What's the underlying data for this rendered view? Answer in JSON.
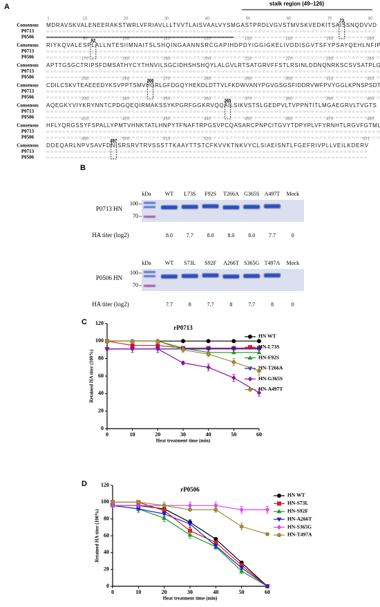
{
  "panel_a": {
    "label": "A",
    "stalk_label": "stalk region (49–126)",
    "seq_names": [
      "Consensus",
      "P0713",
      "P0506"
    ],
    "rows": [
      {
        "positions": [
          "1",
          "10",
          "20",
          "30",
          "40",
          "50",
          "60",
          "70",
          "80"
        ],
        "consensus": "MDRAVSKVALENEERAKSTWRLVFRIAVLLLTVVTLAISVAALVYSMGASTPRDLVGVSTMVSKVEDKITSAISSNQDVVD"
      },
      {
        "positions": [
          "90",
          "100",
          "110",
          "120",
          "130",
          "140",
          "150",
          "160"
        ],
        "consensus": "RIYKQVALESPLALLNTESIIMNAITSLSHQINGAANNSRCGAPIHDPDYIGGIGKELIVDDISGVTSFYPSAYQEHLNFIP"
      },
      {
        "positions": [
          "170",
          "180",
          "190",
          "200",
          "210",
          "220",
          "230",
          "240"
        ],
        "consensus": "APTTGSGCTRIPSFDMSATHYCYTHNVILSGCIDHSHSHQYLALGVLRTSATGRVFFSTLRSINLDDNQNRKSCSVSATPLG"
      },
      {
        "positions": [
          "250",
          "260",
          "270",
          "280",
          "290",
          "300",
          "310",
          "320"
        ],
        "consensus": "CDILCSKVTEAEEEDYKSVPPTSMVHGRLGFDGQYHEKDLDTTVLFKDWVANYPGVGSGSFIDDRVWFPVYGGLKPNSPSDT"
      },
      {
        "positions": [
          "330",
          "340",
          "350",
          "360",
          "370",
          "380",
          "390",
          "400"
        ],
        "consensus": "AQEGKYVIYKRYNNTCPDGQEQIRMAKSSYKPGRFGGKRVQQAILSIKVSTSLGEDPVLTVPPNTITLMGAEGRVLTVGTS"
      },
      {
        "positions": [
          "410",
          "420",
          "430",
          "440",
          "450",
          "460",
          "470",
          "480"
        ],
        "consensus": "HFLYQRGSSYFSPALLYPMTVHNKTATLHNPYTFNAFTRPGSVPCQASARCPNPCITGVYTDPYPLVFYRNHTLRGVFGTML"
      },
      {
        "positions": [
          "490",
          "500",
          "510",
          "520",
          "571"
        ],
        "consensus": "DDEQARLNPVSAVFDNISRSRVTRVSSSTTKAAYTTSTCFKVVKTNKVYCLSIAEISNTLFGEFRIVPLLVEILKDERV"
      }
    ],
    "sites": [
      "73",
      "92",
      "266",
      "365",
      "497"
    ]
  },
  "panel_b": {
    "label": "B",
    "unit": "kDa",
    "markers": [
      "100",
      "70"
    ],
    "titer_label": "HA titer (log2)",
    "gels": [
      {
        "name": "P0713 HN",
        "lanes": [
          "WT",
          "L73S",
          "F92S",
          "T266A",
          "G365S",
          "A497T",
          "Mock"
        ],
        "titers": [
          "8.0",
          "7.7",
          "8.0",
          "8.0",
          "8.0",
          "7.7",
          "0"
        ]
      },
      {
        "name": "P0506 HN",
        "lanes": [
          "WT",
          "S73L",
          "S92F",
          "A266T",
          "S365G",
          "T497A",
          "Mock"
        ],
        "titers": [
          "7.7",
          "8",
          "7.7",
          "8",
          "7.7",
          "8",
          "0"
        ]
      }
    ]
  },
  "chart_data": [
    {
      "type": "line",
      "panel": "C",
      "title": "rP0713",
      "x_label": "Heat treatment time (min)",
      "y_label": "Retained HA titer (100%)",
      "x": [
        0,
        10,
        20,
        30,
        40,
        50,
        60
      ],
      "xlim": [
        0,
        60
      ],
      "xticks": [
        0,
        10,
        20,
        30,
        40,
        50,
        60
      ],
      "ylim": [
        0,
        120
      ],
      "yticks": [
        0,
        20,
        40,
        60,
        80,
        100,
        120
      ],
      "series": [
        {
          "name": "HN WT",
          "color": "#000000",
          "marker": "circle",
          "values": [
            100,
            100,
            100,
            100,
            100,
            100,
            100
          ]
        },
        {
          "name": "HN-L73S",
          "color": "#e8161b",
          "marker": "square",
          "values": [
            100,
            95,
            95,
            92,
            92,
            92,
            92
          ]
        },
        {
          "name": "HN-F92S",
          "color": "#1a9a1a",
          "marker": "triangle-up",
          "values": [
            100,
            100,
            100,
            92,
            87,
            87,
            87
          ]
        },
        {
          "name": "HN-T266A",
          "color": "#1f1fd6",
          "marker": "triangle-down",
          "values": [
            91,
            91,
            91,
            91,
            91,
            91,
            91
          ]
        },
        {
          "name": "HN-G365S",
          "color": "#8b11a0",
          "marker": "diamond",
          "values": [
            91,
            91,
            91,
            75,
            70,
            58,
            41
          ],
          "errors": [
            2,
            4,
            4,
            2,
            4,
            4,
            4
          ]
        },
        {
          "name": "HN-A497T",
          "color": "#9b8a3c",
          "marker": "circle",
          "values": [
            100,
            100,
            100,
            90,
            85,
            76,
            66
          ],
          "errors": [
            1,
            1,
            1,
            3,
            3,
            4,
            5
          ]
        }
      ]
    },
    {
      "type": "line",
      "panel": "D",
      "title": "rP0506",
      "x_label": "Heat treatment time (min)",
      "y_label": "Retained HA titer (100%)",
      "x": [
        0,
        10,
        20,
        30,
        40,
        50,
        60
      ],
      "xlim": [
        0,
        60
      ],
      "xticks": [
        0,
        10,
        20,
        30,
        40,
        50,
        60
      ],
      "ylim": [
        0,
        120
      ],
      "yticks": [
        0,
        20,
        40,
        60,
        80,
        100,
        120
      ],
      "series": [
        {
          "name": "HN WT",
          "color": "#000000",
          "marker": "circle",
          "values": [
            96,
            96,
            92,
            76,
            56,
            28,
            0
          ],
          "errors": [
            1,
            2,
            2,
            3,
            2,
            2,
            1
          ]
        },
        {
          "name": "HN-S73L",
          "color": "#e8161b",
          "marker": "square",
          "values": [
            100,
            100,
            90,
            66,
            52,
            25,
            0
          ],
          "errors": [
            1,
            2,
            2,
            4,
            2,
            2,
            1
          ]
        },
        {
          "name": "HN-S92F",
          "color": "#1a9a1a",
          "marker": "triangle-up",
          "values": [
            96,
            92,
            81,
            61,
            47,
            18,
            0
          ],
          "errors": [
            2,
            2,
            4,
            4,
            3,
            3,
            1
          ]
        },
        {
          "name": "HN-A266T",
          "color": "#1f1fd6",
          "marker": "triangle-down",
          "values": [
            96,
            92,
            86,
            74,
            48,
            22,
            0
          ],
          "errors": [
            2,
            4,
            3,
            4,
            3,
            2,
            1
          ]
        },
        {
          "name": "HN-S365G",
          "color": "#e23ef0",
          "marker": "diamond",
          "values": [
            96,
            96,
            96,
            96,
            96,
            91,
            91
          ],
          "errors": [
            2,
            2,
            2,
            4,
            4,
            4,
            4
          ]
        },
        {
          "name": "HN-T497A",
          "color": "#9b8a3c",
          "marker": "circle",
          "values": [
            100,
            100,
            96,
            91,
            91,
            71,
            62
          ],
          "errors": [
            1,
            1,
            4,
            1,
            3,
            4,
            1
          ]
        }
      ]
    }
  ]
}
